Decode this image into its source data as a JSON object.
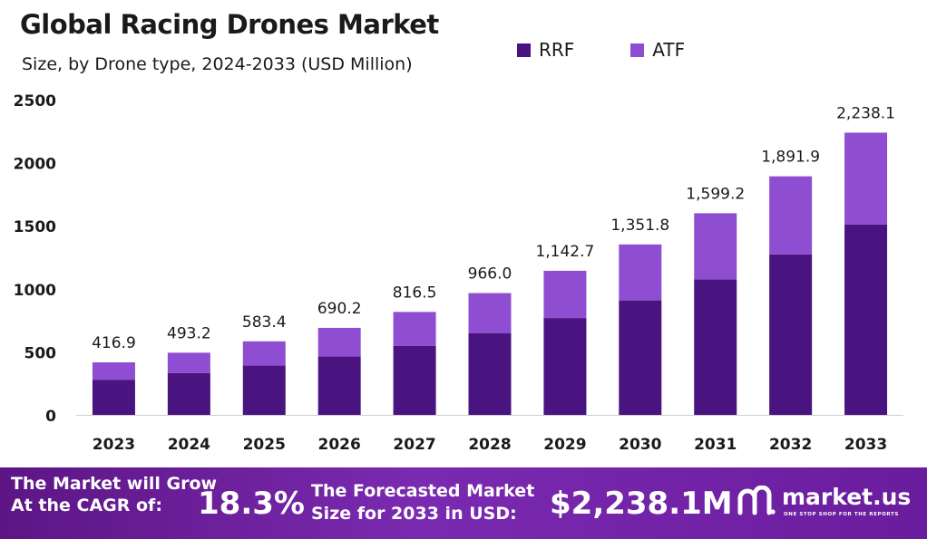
{
  "chart_data": {
    "type": "bar",
    "stacked": true,
    "title": "Global Racing Drones Market",
    "subtitle": "Size, by Drone type, 2024-2033 (USD Million)",
    "categories": [
      "2023",
      "2024",
      "2025",
      "2026",
      "2027",
      "2028",
      "2029",
      "2030",
      "2031",
      "2032",
      "2033"
    ],
    "series": [
      {
        "name": "RRF",
        "color": "#4a1480",
        "values": [
          279,
          331,
          391,
          463,
          548,
          649,
          768,
          908,
          1075,
          1273,
          1509
        ]
      },
      {
        "name": "ATF",
        "color": "#8f4ed1",
        "values": [
          137.9,
          162.2,
          192.4,
          227.2,
          268.5,
          317.0,
          374.7,
          443.8,
          524.2,
          618.9,
          729.1
        ]
      }
    ],
    "totals": [
      "416.9",
      "493.2",
      "583.4",
      "690.2",
      "816.5",
      "966.0",
      "1,142.7",
      "1,351.8",
      "1,599.2",
      "1,891.9",
      "2,238.1"
    ],
    "yticks": [
      "0",
      "500",
      "1000",
      "1500",
      "2000",
      "2500"
    ],
    "ylim": [
      0,
      2500
    ],
    "legend_position": "top-right",
    "grid": false
  },
  "footer": {
    "cagr_label": "The Market will Grow At the CAGR of:",
    "cagr_value": "18.3%",
    "forecast_label": "The Forecasted Market Size for 2033 in USD:",
    "forecast_value": "$2,238.1M"
  },
  "brand": {
    "name": "market.us",
    "tagline": "ONE STOP SHOP FOR THE REPORTS"
  }
}
